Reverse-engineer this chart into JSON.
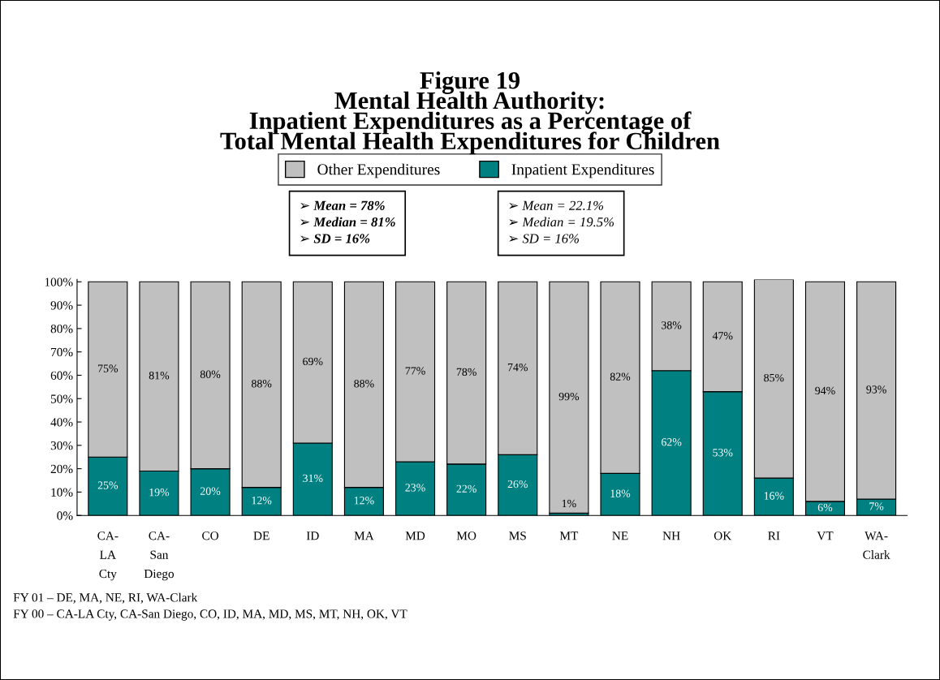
{
  "chart_data": {
    "type": "bar",
    "stacked": true,
    "title": "Figure 19\nMental Health Authority:\nInpatient Expenditures as a Percentage of\nTotal Mental Health Expenditures for Children",
    "categories": [
      "CA-\nLA\nCty",
      "CA-\nSan\nDiego",
      "CO",
      "DE",
      "ID",
      "MA",
      "MD",
      "MO",
      "MS",
      "MT",
      "NE",
      "NH",
      "OK",
      "RI",
      "VT",
      "WA-\nClark"
    ],
    "series": [
      {
        "name": "Inpatient Expenditures",
        "color": "#008080",
        "values": [
          25,
          19,
          20,
          12,
          31,
          12,
          23,
          22,
          26,
          1,
          18,
          62,
          53,
          16,
          6,
          7
        ],
        "value_labels": [
          "25%",
          "19%",
          "20%",
          "12%",
          "31%",
          "12%",
          "23%",
          "22%",
          "26%",
          "1%",
          "18%",
          "62%",
          "53%",
          "16%",
          "6%",
          "7%"
        ]
      },
      {
        "name": "Other Expenditures",
        "color": "#c0c0c0",
        "values": [
          75,
          81,
          80,
          88,
          69,
          88,
          77,
          78,
          74,
          99,
          82,
          38,
          47,
          85,
          94,
          93
        ],
        "value_labels": [
          "75%",
          "81%",
          "80%",
          "88%",
          "69%",
          "88%",
          "77%",
          "78%",
          "74%",
          "99%",
          "82%",
          "38%",
          "47%",
          "85%",
          "94%",
          "93%"
        ]
      }
    ],
    "ylim": [
      0,
      101
    ],
    "yticks": [
      {
        "value": 0,
        "label": "0%"
      },
      {
        "value": 10,
        "label": "10%"
      },
      {
        "value": 20,
        "label": "20%"
      },
      {
        "value": 30,
        "label": "30%"
      },
      {
        "value": 40,
        "label": "40%"
      },
      {
        "value": 50,
        "label": "50%"
      },
      {
        "value": 60,
        "label": "60%"
      },
      {
        "value": 70,
        "label": "70%"
      },
      {
        "value": 80,
        "label": "80%"
      },
      {
        "value": 90,
        "label": "90%"
      },
      {
        "value": 100,
        "label": "100%"
      }
    ],
    "grid": false,
    "legend": "top",
    "annotations": [
      "➢ Mean = 78%\n➢ Median = 81%\n➢ SD = 16%",
      "➢ Mean = 22.1%\n➢ Median = 19.5%\n➢ SD = 16%",
      "FY 01 – DE, MA, NE, RI, WA-Clark",
      "FY 00 – CA-LA Cty, CA-San Diego, CO, ID, MA, MD, MS, MT, NH, OK, VT"
    ]
  }
}
